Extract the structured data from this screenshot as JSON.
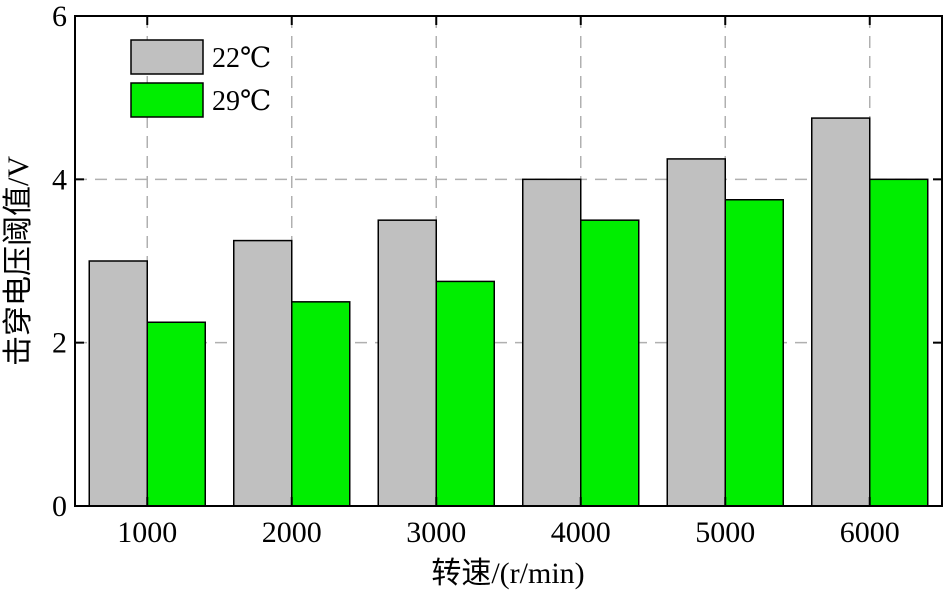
{
  "chart_data": {
    "type": "bar",
    "categories": [
      "1000",
      "2000",
      "3000",
      "4000",
      "5000",
      "6000"
    ],
    "series": [
      {
        "name": "22℃",
        "color": "#c0c0c0",
        "values": [
          3.0,
          3.25,
          3.5,
          4.0,
          4.25,
          4.75
        ]
      },
      {
        "name": "29℃",
        "color": "#00ee00",
        "values": [
          2.25,
          2.5,
          2.75,
          3.5,
          3.75,
          4.0
        ]
      }
    ],
    "xlabel": "转速/(r/min)",
    "ylabel": "击穿电压阈值/V",
    "ylim": [
      0,
      6
    ],
    "yticks": [
      0,
      2,
      4,
      6
    ],
    "grid": true,
    "legend_position": "top-left"
  }
}
